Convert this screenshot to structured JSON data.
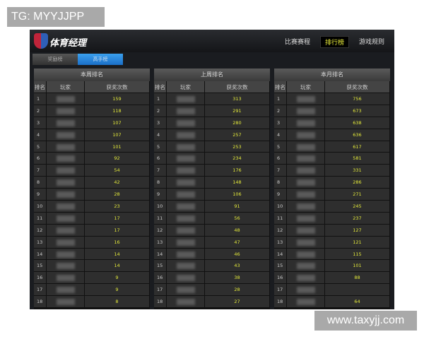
{
  "watermark_top": "TG: MYYJJPP",
  "watermark_bottom": "www.taxyjj.com",
  "header": {
    "title": "体育经理",
    "nav": [
      "比赛赛程",
      "排行榜",
      "游戏规则"
    ],
    "active_nav": 1
  },
  "tabs": [
    "奖励榜",
    "高手榜"
  ],
  "columns": [
    "排名",
    "玩家",
    "获奖次数"
  ],
  "panels": [
    {
      "title": "本周排名",
      "counts": [
        "159",
        "118",
        "107",
        "107",
        "101",
        "92",
        "54",
        "42",
        "28",
        "23",
        "17",
        "17",
        "16",
        "14",
        "14",
        "9",
        "9",
        "8"
      ]
    },
    {
      "title": "上周排名",
      "counts": [
        "313",
        "291",
        "280",
        "257",
        "253",
        "234",
        "176",
        "148",
        "106",
        "91",
        "56",
        "48",
        "47",
        "46",
        "43",
        "38",
        "28",
        "27"
      ]
    },
    {
      "title": "本月排名",
      "counts": [
        "756",
        "673",
        "638",
        "636",
        "617",
        "581",
        "331",
        "286",
        "271",
        "245",
        "237",
        "127",
        "121",
        "115",
        "101",
        "88",
        "",
        "64"
      ]
    }
  ],
  "colors": {
    "accent": "#e2e83a",
    "active_tab": "#2a8ee0"
  }
}
